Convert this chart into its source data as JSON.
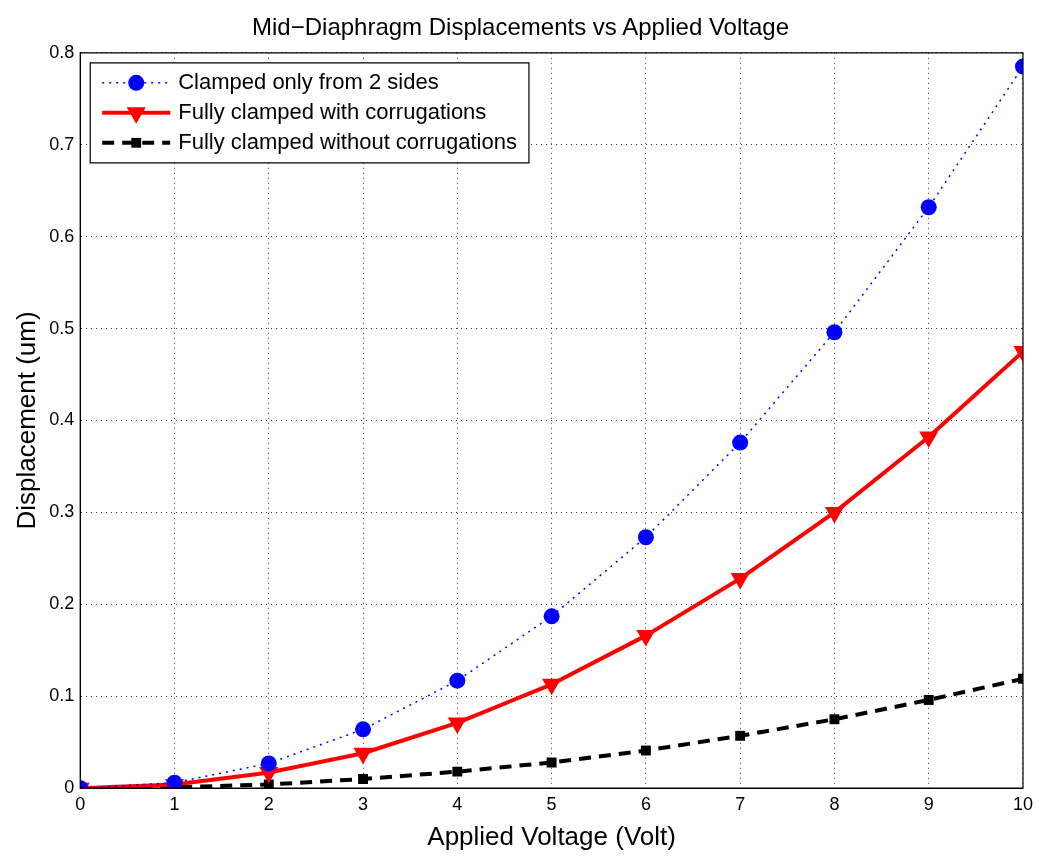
{
  "chart_data": {
    "type": "line",
    "title": "Mid−Diaphragm Displacements vs Applied Voltage",
    "xlabel": "Applied Voltage (Volt)",
    "ylabel": "Displacement (um)",
    "x": [
      0,
      1,
      2,
      3,
      4,
      5,
      6,
      7,
      8,
      9,
      10
    ],
    "series": [
      {
        "name": "Clamped only from 2 sides",
        "color": "#0000ff",
        "marker": "circle",
        "line_style": "dotted",
        "values": [
          0,
          0.006,
          0.027,
          0.064,
          0.117,
          0.187,
          0.273,
          0.376,
          0.496,
          0.632,
          0.785
        ]
      },
      {
        "name": "Fully clamped with corrugations",
        "color": "#ff0000",
        "marker": "triangle",
        "line_style": "solid",
        "values": [
          0,
          0.004,
          0.017,
          0.038,
          0.071,
          0.113,
          0.166,
          0.228,
          0.3,
          0.382,
          0.475
        ]
      },
      {
        "name": "Fully clamped without corrugations",
        "color": "#000000",
        "marker": "square",
        "line_style": "dashed",
        "values": [
          0,
          0.001,
          0.004,
          0.01,
          0.018,
          0.028,
          0.041,
          0.057,
          0.075,
          0.096,
          0.119
        ]
      }
    ],
    "xlim": [
      0,
      10
    ],
    "xticks": [
      0,
      1,
      2,
      3,
      4,
      5,
      6,
      7,
      8,
      9,
      10
    ],
    "ylim": [
      0,
      0.8
    ],
    "yticks": [
      0,
      0.1,
      0.2,
      0.3,
      0.4,
      0.5,
      0.6,
      0.7,
      0.8
    ],
    "grid": true,
    "legend": "top left"
  }
}
